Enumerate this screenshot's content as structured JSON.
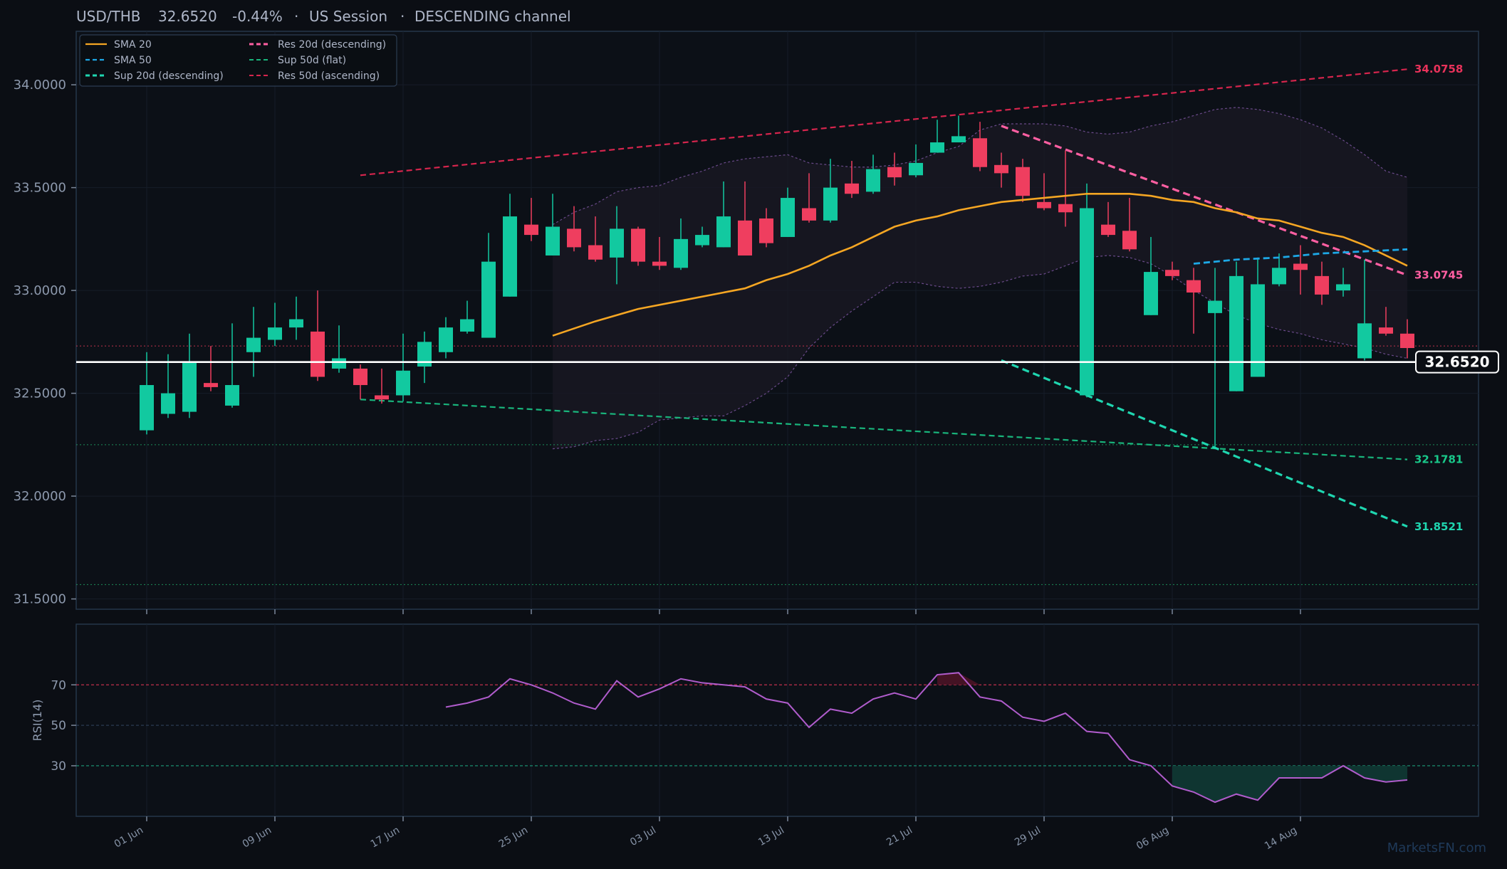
{
  "header": {
    "symbol": "USD/THB",
    "price": "32.6520",
    "change": "-0.44%",
    "session": "US Session",
    "channel": "DESCENDING channel"
  },
  "watermark": "MarketsFN.com",
  "colors": {
    "background": "#0b0e14",
    "up": "#12c9a0",
    "down": "#ef3e5f",
    "sma20": "#f5a623",
    "sma50": "#1da8e6",
    "res20": "#ff5fa2",
    "sup20": "#1fd6b0",
    "sup50": "#19b57c",
    "res50": "#d6254d",
    "band": "#6a4a8a",
    "rsi": "#b05ccc",
    "price_line": "#ffffff"
  },
  "legend": [
    {
      "label": "SMA 20",
      "color": "#f5a623",
      "dash": "solid"
    },
    {
      "label": "SMA 50",
      "color": "#1da8e6",
      "dash": "dashed"
    },
    {
      "label": "Sup 20d (descending)",
      "color": "#1fd6b0",
      "dash": "dashed"
    },
    {
      "label": "Res 20d (descending)",
      "color": "#ff5fa2",
      "dash": "dashed"
    },
    {
      "label": "Sup 50d (flat)",
      "color": "#19b57c",
      "dash": "dashed"
    },
    {
      "label": "Res 50d (ascending)",
      "color": "#d6254d",
      "dash": "dashed"
    }
  ],
  "level_labels": [
    {
      "value": 34.0758,
      "text": "34.0758",
      "color": "#e8325a"
    },
    {
      "value": 33.0745,
      "text": "33.0745",
      "color": "#ff5fa2"
    },
    {
      "value": 32.1781,
      "text": "32.1781",
      "color": "#19c88a"
    },
    {
      "value": 31.8521,
      "text": "31.8521",
      "color": "#1fd6b0"
    }
  ],
  "current_price_tag": "32.6520",
  "chart_data": {
    "type": "candlestick",
    "x_ticks": [
      "01 Jun",
      "09 Jun",
      "17 Jun",
      "25 Jun",
      "03 Jul",
      "13 Jul",
      "21 Jul",
      "29 Jul",
      "06 Aug",
      "14 Aug"
    ],
    "y_ticks": [
      "31.5000",
      "32.0000",
      "32.5000",
      "33.0000",
      "33.5000",
      "34.0000"
    ],
    "ylim": [
      31.45,
      34.26
    ],
    "candles": [
      [
        32.32,
        32.54,
        32.7,
        32.3
      ],
      [
        32.4,
        32.5,
        32.69,
        32.38
      ],
      [
        32.41,
        32.65,
        32.79,
        32.38
      ],
      [
        32.55,
        32.53,
        32.73,
        32.51
      ],
      [
        32.44,
        32.54,
        32.84,
        32.43
      ],
      [
        32.7,
        32.77,
        32.92,
        32.58
      ],
      [
        32.76,
        32.82,
        32.94,
        32.73
      ],
      [
        32.82,
        32.86,
        32.97,
        32.76
      ],
      [
        32.8,
        32.58,
        33.0,
        32.56
      ],
      [
        32.62,
        32.67,
        32.83,
        32.6
      ],
      [
        32.62,
        32.54,
        32.64,
        32.47
      ],
      [
        32.49,
        32.47,
        32.62,
        32.45
      ],
      [
        32.49,
        32.61,
        32.79,
        32.46
      ],
      [
        32.63,
        32.75,
        32.8,
        32.55
      ],
      [
        32.7,
        32.82,
        32.87,
        32.67
      ],
      [
        32.8,
        32.86,
        32.95,
        32.79
      ],
      [
        32.77,
        33.14,
        33.28,
        32.77
      ],
      [
        32.97,
        33.36,
        33.47,
        32.97
      ],
      [
        33.32,
        33.27,
        33.45,
        33.24
      ],
      [
        33.17,
        33.31,
        33.47,
        33.17
      ],
      [
        33.3,
        33.21,
        33.41,
        33.19
      ],
      [
        33.22,
        33.15,
        33.36,
        33.14
      ],
      [
        33.16,
        33.3,
        33.41,
        33.03
      ],
      [
        33.3,
        33.14,
        33.31,
        33.12
      ],
      [
        33.14,
        33.12,
        33.26,
        33.1
      ],
      [
        33.11,
        33.25,
        33.35,
        33.1
      ],
      [
        33.22,
        33.27,
        33.31,
        33.21
      ],
      [
        33.21,
        33.36,
        33.53,
        33.21
      ],
      [
        33.34,
        33.17,
        33.53,
        33.17
      ],
      [
        33.35,
        33.23,
        33.4,
        33.21
      ],
      [
        33.26,
        33.45,
        33.5,
        33.26
      ],
      [
        33.4,
        33.34,
        33.57,
        33.33
      ],
      [
        33.34,
        33.5,
        33.64,
        33.33
      ],
      [
        33.52,
        33.47,
        33.63,
        33.45
      ],
      [
        33.48,
        33.59,
        33.66,
        33.47
      ],
      [
        33.6,
        33.55,
        33.67,
        33.51
      ],
      [
        33.56,
        33.62,
        33.71,
        33.55
      ],
      [
        33.67,
        33.72,
        33.83,
        33.67
      ],
      [
        33.72,
        33.75,
        33.85,
        33.72
      ],
      [
        33.74,
        33.6,
        33.82,
        33.58
      ],
      [
        33.61,
        33.57,
        33.67,
        33.5
      ],
      [
        33.6,
        33.46,
        33.64,
        33.43
      ],
      [
        33.43,
        33.4,
        33.57,
        33.39
      ],
      [
        33.42,
        33.38,
        33.68,
        33.31
      ],
      [
        32.49,
        33.4,
        33.52,
        32.48
      ],
      [
        33.32,
        33.27,
        33.43,
        33.26
      ],
      [
        33.29,
        33.2,
        33.45,
        33.19
      ],
      [
        32.88,
        33.09,
        33.26,
        32.88
      ],
      [
        33.1,
        33.07,
        33.14,
        33.05
      ],
      [
        33.05,
        32.99,
        33.11,
        32.79
      ],
      [
        32.89,
        32.95,
        33.11,
        32.24
      ],
      [
        32.51,
        33.07,
        33.14,
        32.51
      ],
      [
        32.58,
        33.03,
        33.16,
        32.58
      ],
      [
        33.03,
        33.11,
        33.18,
        33.02
      ],
      [
        33.13,
        33.1,
        33.22,
        32.98
      ],
      [
        33.07,
        32.98,
        33.14,
        32.93
      ],
      [
        33.0,
        33.03,
        33.11,
        32.97
      ],
      [
        32.67,
        32.84,
        33.15,
        32.66
      ],
      [
        32.82,
        32.79,
        32.92,
        32.78
      ],
      [
        32.79,
        32.72,
        32.86,
        32.67
      ]
    ],
    "sma20": [
      [
        19,
        32.78
      ],
      [
        21,
        32.85
      ],
      [
        23,
        32.91
      ],
      [
        25,
        32.95
      ],
      [
        27,
        32.99
      ],
      [
        28,
        33.01
      ],
      [
        29,
        33.05
      ],
      [
        30,
        33.08
      ],
      [
        31,
        33.12
      ],
      [
        32,
        33.17
      ],
      [
        33,
        33.21
      ],
      [
        34,
        33.26
      ],
      [
        35,
        33.31
      ],
      [
        36,
        33.34
      ],
      [
        37,
        33.36
      ],
      [
        38,
        33.39
      ],
      [
        39,
        33.41
      ],
      [
        40,
        33.43
      ],
      [
        41,
        33.44
      ],
      [
        42,
        33.45
      ],
      [
        43,
        33.46
      ],
      [
        44,
        33.47
      ],
      [
        45,
        33.47
      ],
      [
        46,
        33.47
      ],
      [
        47,
        33.46
      ],
      [
        48,
        33.44
      ],
      [
        49,
        33.43
      ],
      [
        50,
        33.4
      ],
      [
        51,
        33.38
      ],
      [
        52,
        33.35
      ],
      [
        53,
        33.34
      ],
      [
        54,
        33.31
      ],
      [
        55,
        33.28
      ],
      [
        56,
        33.26
      ],
      [
        57,
        33.22
      ],
      [
        58,
        33.17
      ],
      [
        59,
        33.12
      ]
    ],
    "sma50": [
      [
        49,
        33.13
      ],
      [
        51,
        33.15
      ],
      [
        53,
        33.16
      ],
      [
        55,
        33.18
      ],
      [
        57,
        33.19
      ],
      [
        59,
        33.2
      ]
    ],
    "bollinger_upper": [
      [
        19,
        33.32
      ],
      [
        20,
        33.38
      ],
      [
        21,
        33.42
      ],
      [
        22,
        33.48
      ],
      [
        23,
        33.5
      ],
      [
        24,
        33.51
      ],
      [
        25,
        33.55
      ],
      [
        26,
        33.58
      ],
      [
        27,
        33.62
      ],
      [
        28,
        33.64
      ],
      [
        29,
        33.65
      ],
      [
        30,
        33.66
      ],
      [
        31,
        33.62
      ],
      [
        32,
        33.61
      ],
      [
        33,
        33.6
      ],
      [
        34,
        33.6
      ],
      [
        35,
        33.61
      ],
      [
        36,
        33.63
      ],
      [
        37,
        33.67
      ],
      [
        38,
        33.7
      ],
      [
        39,
        33.78
      ],
      [
        40,
        33.81
      ],
      [
        41,
        33.81
      ],
      [
        42,
        33.81
      ],
      [
        43,
        33.8
      ],
      [
        44,
        33.77
      ],
      [
        45,
        33.76
      ],
      [
        46,
        33.77
      ],
      [
        47,
        33.8
      ],
      [
        48,
        33.82
      ],
      [
        49,
        33.85
      ],
      [
        50,
        33.88
      ],
      [
        51,
        33.89
      ],
      [
        52,
        33.88
      ],
      [
        53,
        33.86
      ],
      [
        54,
        33.83
      ],
      [
        55,
        33.79
      ],
      [
        56,
        33.73
      ],
      [
        57,
        33.66
      ],
      [
        58,
        33.58
      ],
      [
        59,
        33.55
      ]
    ],
    "bollinger_lower": [
      [
        19,
        32.23
      ],
      [
        20,
        32.24
      ],
      [
        21,
        32.27
      ],
      [
        22,
        32.28
      ],
      [
        23,
        32.31
      ],
      [
        24,
        32.37
      ],
      [
        25,
        32.38
      ],
      [
        26,
        32.39
      ],
      [
        27,
        32.39
      ],
      [
        28,
        32.44
      ],
      [
        29,
        32.5
      ],
      [
        30,
        32.58
      ],
      [
        31,
        32.72
      ],
      [
        32,
        32.82
      ],
      [
        33,
        32.9
      ],
      [
        34,
        32.97
      ],
      [
        35,
        33.04
      ],
      [
        36,
        33.04
      ],
      [
        37,
        33.02
      ],
      [
        38,
        33.01
      ],
      [
        39,
        33.02
      ],
      [
        40,
        33.04
      ],
      [
        41,
        33.07
      ],
      [
        42,
        33.08
      ],
      [
        43,
        33.12
      ],
      [
        44,
        33.16
      ],
      [
        45,
        33.17
      ],
      [
        46,
        33.16
      ],
      [
        47,
        33.13
      ],
      [
        48,
        33.07
      ],
      [
        49,
        33.0
      ],
      [
        50,
        32.94
      ],
      [
        51,
        32.88
      ],
      [
        52,
        32.84
      ],
      [
        53,
        32.81
      ],
      [
        54,
        32.79
      ],
      [
        55,
        32.76
      ],
      [
        56,
        32.74
      ],
      [
        57,
        32.72
      ],
      [
        58,
        32.69
      ],
      [
        59,
        32.67
      ]
    ],
    "trend_lines": [
      {
        "name": "Res 50d (ascending)",
        "from": [
          10,
          33.56
        ],
        "to": [
          59,
          34.0758
        ]
      },
      {
        "name": "Sup 50d (flat)",
        "from": [
          10,
          32.47
        ],
        "to": [
          59,
          32.1781
        ]
      },
      {
        "name": "Res 20d (descending)",
        "from": [
          40,
          33.8
        ],
        "to": [
          59,
          33.0745
        ]
      },
      {
        "name": "Sup 20d (descending)",
        "from": [
          40,
          32.66
        ],
        "to": [
          59,
          31.8521
        ]
      }
    ],
    "reference_levels": [
      {
        "value": 32.73,
        "color": "#c0304c"
      },
      {
        "value": 32.25,
        "color": "#1d8c58"
      },
      {
        "value": 31.57,
        "color": "#1d8c58"
      }
    ],
    "current_price": 32.652,
    "rsi": {
      "ylabel": "RSI(14)",
      "ylim": [
        5,
        100
      ],
      "y_ticks": [
        "70",
        "50",
        "30"
      ],
      "overbought": 70,
      "oversold": 30,
      "values": [
        [
          14,
          59
        ],
        [
          15,
          61
        ],
        [
          16,
          64
        ],
        [
          17,
          73
        ],
        [
          18,
          70
        ],
        [
          19,
          66
        ],
        [
          20,
          61
        ],
        [
          21,
          58
        ],
        [
          22,
          72
        ],
        [
          23,
          64
        ],
        [
          24,
          68
        ],
        [
          25,
          73
        ],
        [
          26,
          71
        ],
        [
          27,
          70
        ],
        [
          28,
          69
        ],
        [
          29,
          63
        ],
        [
          30,
          61
        ],
        [
          31,
          49
        ],
        [
          32,
          58
        ],
        [
          33,
          56
        ],
        [
          34,
          63
        ],
        [
          35,
          66
        ],
        [
          36,
          63
        ],
        [
          37,
          75
        ],
        [
          38,
          76
        ],
        [
          39,
          64
        ],
        [
          40,
          62
        ],
        [
          41,
          54
        ],
        [
          42,
          52
        ],
        [
          43,
          56
        ],
        [
          44,
          47
        ],
        [
          45,
          46
        ],
        [
          46,
          33
        ],
        [
          47,
          30
        ],
        [
          48,
          20
        ],
        [
          49,
          17
        ],
        [
          50,
          12
        ],
        [
          51,
          16
        ],
        [
          52,
          13
        ],
        [
          53,
          24
        ],
        [
          54,
          24
        ],
        [
          55,
          24
        ],
        [
          56,
          30
        ],
        [
          57,
          24
        ],
        [
          58,
          22
        ],
        [
          59,
          23
        ]
      ]
    }
  }
}
